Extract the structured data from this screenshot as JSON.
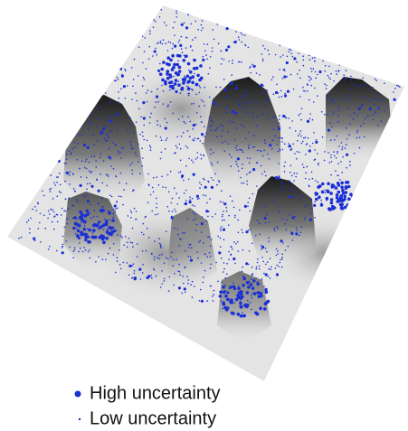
{
  "legend": {
    "items": [
      {
        "label": "High uncertainty"
      },
      {
        "label": "Low uncertainty"
      }
    ]
  }
}
